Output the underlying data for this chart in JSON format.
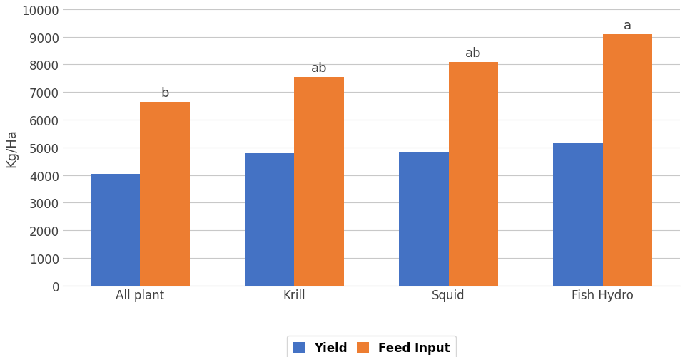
{
  "categories": [
    "All plant",
    "Krill",
    "Squid",
    "Fish Hydro"
  ],
  "yield_values": [
    4050,
    4800,
    4850,
    5150
  ],
  "feed_input_values": [
    6650,
    7550,
    8100,
    9100
  ],
  "feed_input_labels": [
    "b",
    "ab",
    "ab",
    "a"
  ],
  "bar_color_yield": "#4472C4",
  "bar_color_feed": "#ED7D31",
  "ylabel": "Kg/Ha",
  "ylim": [
    0,
    10000
  ],
  "yticks": [
    0,
    1000,
    2000,
    3000,
    4000,
    5000,
    6000,
    7000,
    8000,
    9000,
    10000
  ],
  "legend_labels": [
    "Yield",
    "Feed Input"
  ],
  "bar_width": 0.32,
  "background_color": "#FFFFFF",
  "plot_bg_color": "#FFFFFF",
  "grid_color": "#C8C8C8",
  "label_fontsize": 13,
  "annotation_fontsize": 13,
  "tick_fontsize": 12,
  "legend_fontsize": 12
}
